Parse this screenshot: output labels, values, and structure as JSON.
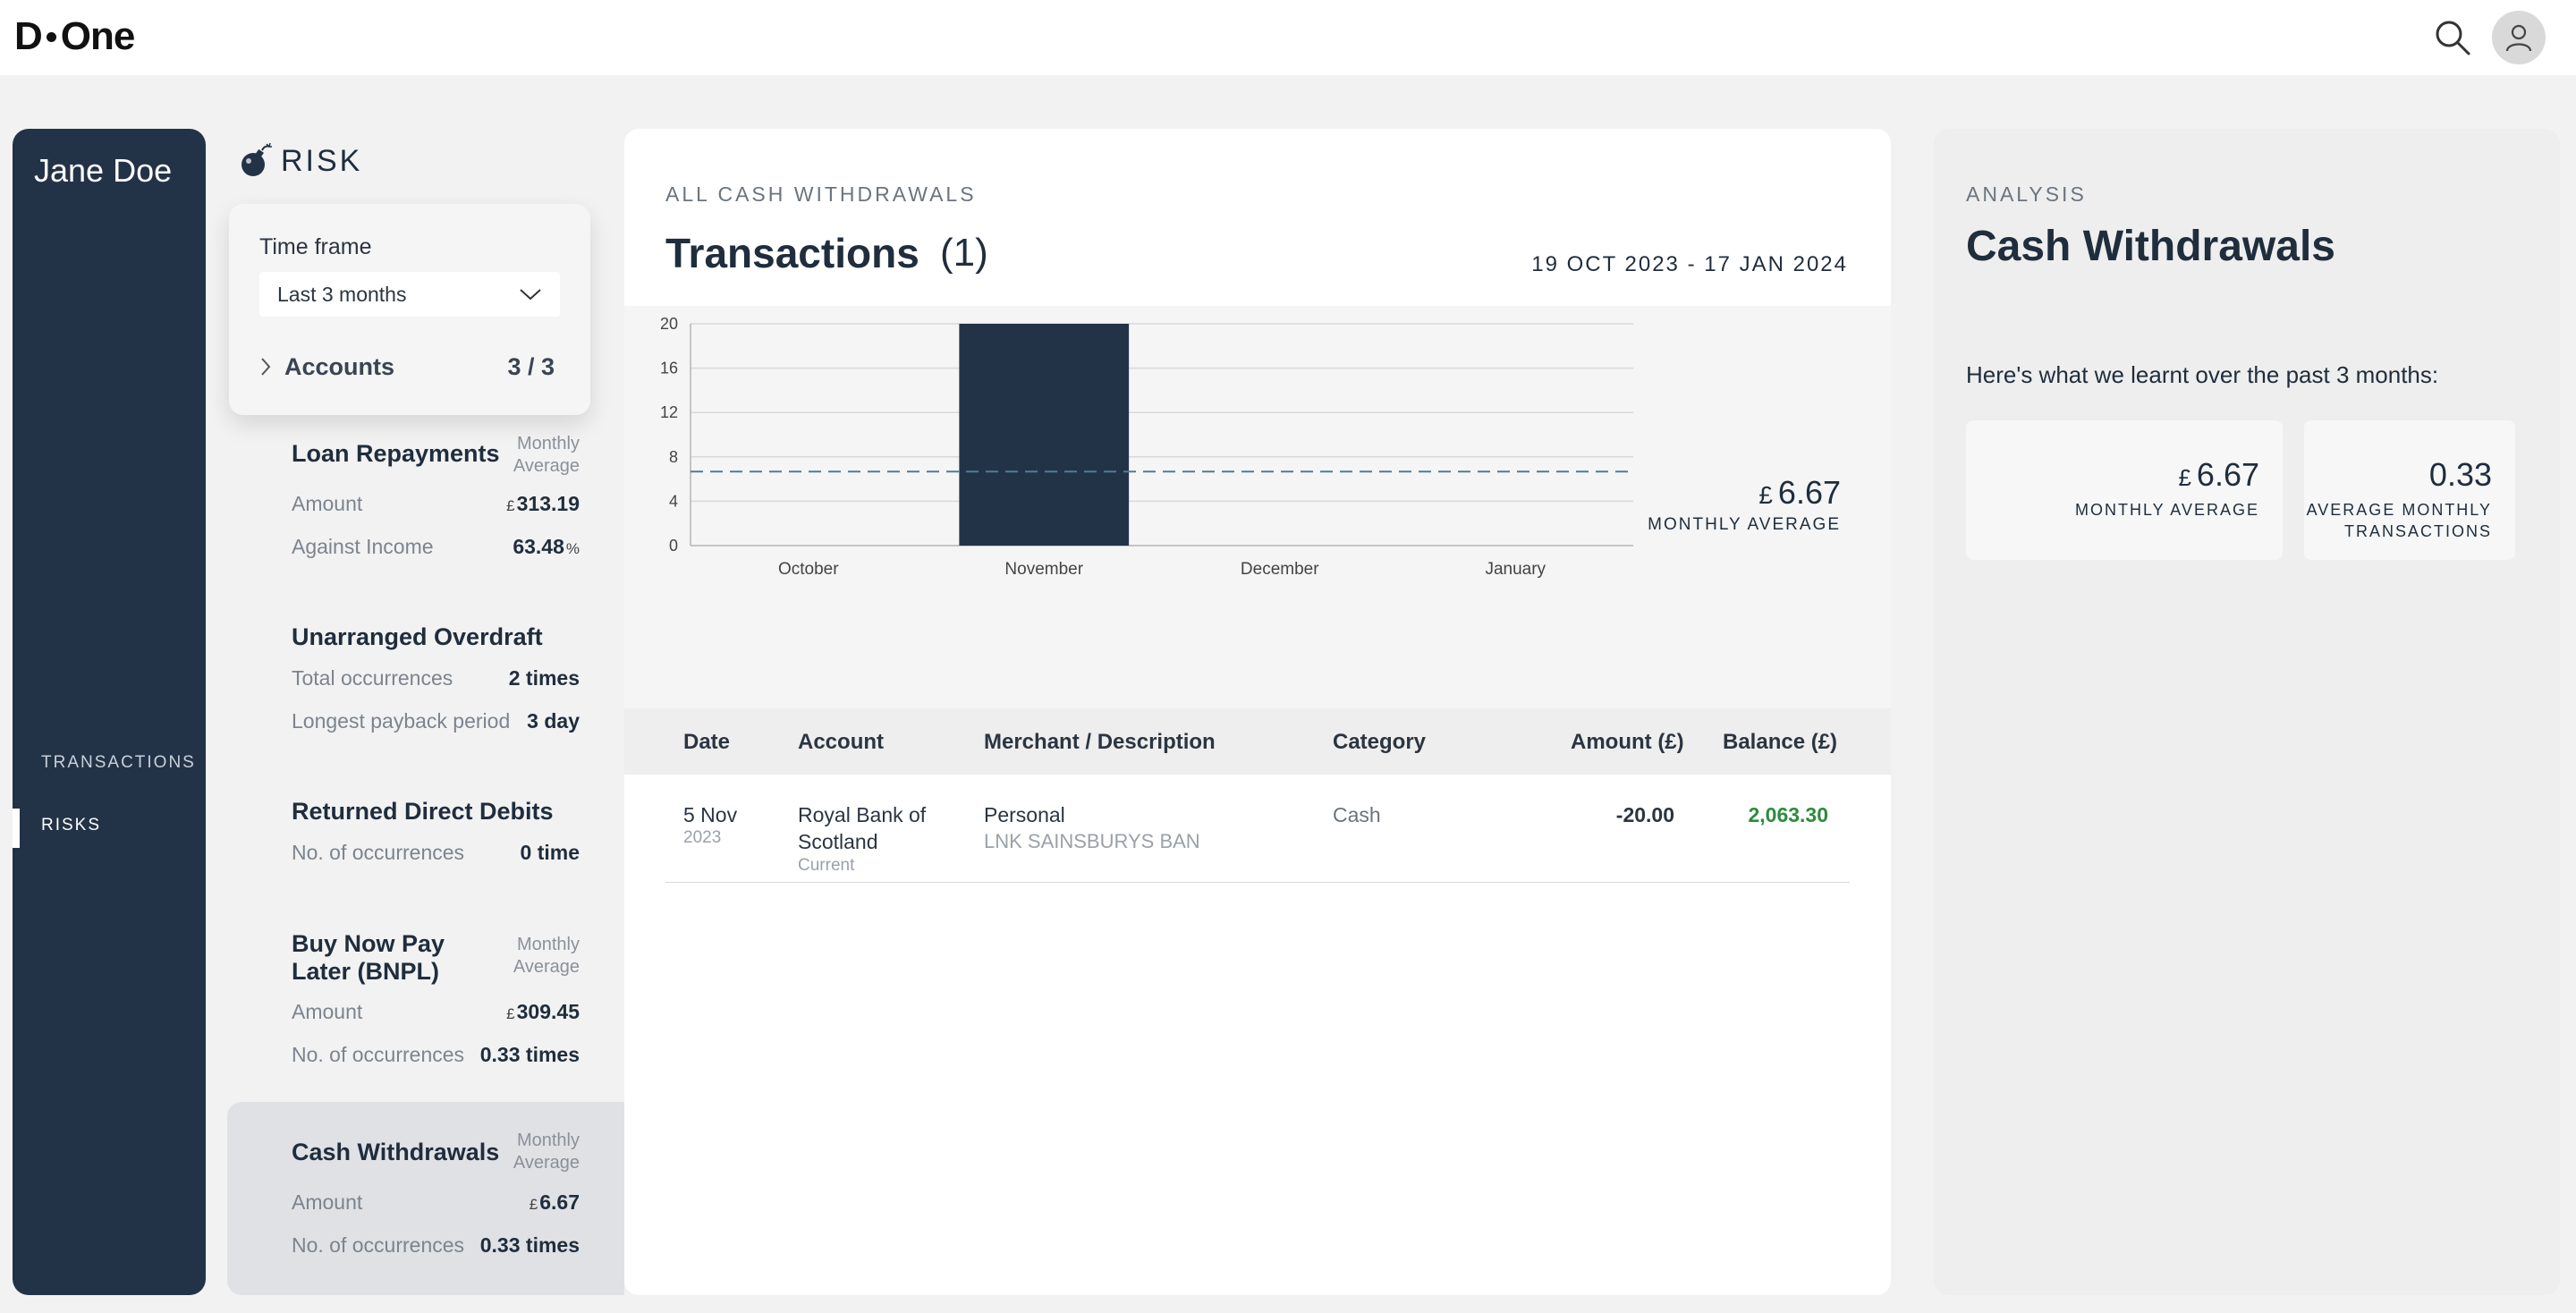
{
  "app": {
    "logo_left": "D",
    "logo_right": "One"
  },
  "nav": {
    "user_name": "Jane Doe",
    "items": [
      {
        "label": "TRANSACTIONS"
      },
      {
        "label": "RISKS",
        "active": true
      }
    ]
  },
  "risk": {
    "heading": "RISK",
    "timeframe": {
      "label": "Time frame",
      "selected": "Last 3 months"
    },
    "accounts": {
      "label": "Accounts",
      "count": "3 / 3"
    },
    "cards": [
      {
        "title": "Loan Repayments",
        "avg_label_1": "Monthly",
        "avg_label_2": "Average",
        "rows": [
          {
            "key": "Amount",
            "currency": "£",
            "value": "313.19",
            "unit": ""
          },
          {
            "key": "Against Income",
            "currency": "",
            "value": "63.48",
            "unit": "%"
          }
        ]
      },
      {
        "title": "Unarranged Overdraft",
        "rows": [
          {
            "key": "Total occurrences",
            "currency": "",
            "value": "2 times",
            "unit": ""
          },
          {
            "key": "Longest payback period",
            "currency": "",
            "value": "3 day",
            "unit": ""
          }
        ]
      },
      {
        "title": "Returned Direct Debits",
        "rows": [
          {
            "key": "No. of occurrences",
            "currency": "",
            "value": "0 time",
            "unit": ""
          }
        ]
      },
      {
        "title": "Buy Now Pay Later (BNPL)",
        "avg_label_1": "Monthly",
        "avg_label_2": "Average",
        "rows": [
          {
            "key": "Amount",
            "currency": "£",
            "value": "309.45",
            "unit": ""
          },
          {
            "key": "No. of occurrences",
            "currency": "",
            "value": "0.33 times",
            "unit": ""
          }
        ]
      },
      {
        "title": "Cash Withdrawals",
        "avg_label_1": "Monthly",
        "avg_label_2": "Average",
        "selected": true,
        "rows": [
          {
            "key": "Amount",
            "currency": "£",
            "value": "6.67",
            "unit": ""
          },
          {
            "key": "No. of occurrences",
            "currency": "",
            "value": "0.33 times",
            "unit": ""
          }
        ]
      }
    ]
  },
  "main": {
    "eyebrow": "ALL CASH WITHDRAWALS",
    "title": "Transactions",
    "count": "(1)",
    "date_range": "19 OCT 2023 - 17 JAN 2024",
    "average": {
      "currency": "£",
      "value": "6.67",
      "label": "MONTHLY AVERAGE"
    },
    "table": {
      "headers": [
        "Date",
        "Account",
        "Merchant / Description",
        "Category",
        "Amount (£)",
        "Balance (£)"
      ],
      "rows": [
        {
          "date_day": "5 Nov",
          "date_year": "2023",
          "account_line1": "Royal Bank of",
          "account_line2": "Scotland",
          "account_type": "Current",
          "merchant": "Personal",
          "description": "LNK SAINSBURYS BAN",
          "category": "Cash",
          "amount": "-20.00",
          "balance": "2,063.30"
        }
      ]
    }
  },
  "chart_data": {
    "type": "bar",
    "categories": [
      "October",
      "November",
      "December",
      "January"
    ],
    "values": [
      0,
      20,
      0,
      0
    ],
    "ylim": [
      0,
      20
    ],
    "yticks": [
      0,
      4,
      8,
      12,
      16,
      20
    ],
    "reference_line": 6.67,
    "grid": true,
    "bar_color": "#233347",
    "line_color": "#4f7d96"
  },
  "analysis": {
    "eyebrow": "ANALYSIS",
    "title": "Cash Withdrawals",
    "intro": "Here's what we learnt over the past 3 months:",
    "stats": [
      {
        "currency": "£",
        "value": "6.67",
        "label_1": "MONTHLY AVERAGE",
        "label_2": ""
      },
      {
        "currency": "",
        "value": "0.33",
        "label_1": "AVERAGE MONTHLY",
        "label_2": "TRANSACTIONS"
      }
    ]
  },
  "colors": {
    "nav_bg": "#233347",
    "positive": "#2e8b3d"
  }
}
